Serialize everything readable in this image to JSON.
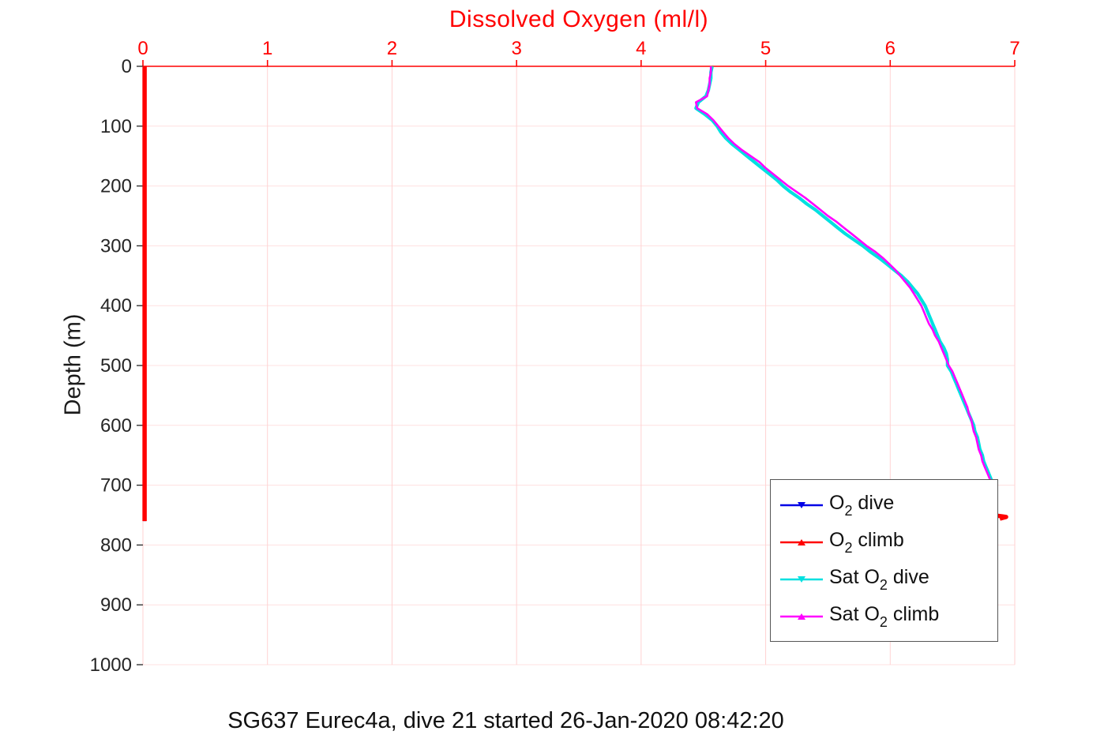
{
  "chart_data": {
    "type": "line",
    "title": "Dissolved Oxygen (ml/l)",
    "ylabel": "Depth (m)",
    "caption": "SG637 Eurec4a, dive 21 started 26-Jan-2020 08:42:20",
    "xlim": [
      0,
      7
    ],
    "ylim": [
      0,
      1000
    ],
    "y_inverted": true,
    "x_axis_location": "top",
    "grid": true,
    "x_ticks": [
      0,
      1,
      2,
      3,
      4,
      5,
      6,
      7
    ],
    "x_tick_labels": [
      "0",
      "1",
      "2",
      "3",
      "4",
      "5",
      "6",
      "7"
    ],
    "y_ticks": [
      0,
      100,
      200,
      300,
      400,
      500,
      600,
      700,
      800,
      900,
      1000
    ],
    "y_tick_labels": [
      "0",
      "100",
      "200",
      "300",
      "400",
      "500",
      "600",
      "700",
      "800",
      "900",
      "1000"
    ],
    "colors": {
      "x_axis": "#ff0000",
      "y_axis": "#262626",
      "grid_x": "#ffd2d2",
      "grid_y": "#ffe0e0",
      "background": "#ffffff",
      "legend_border": "#555555"
    },
    "series": [
      {
        "name": "O2 dive",
        "color": "#0000e6",
        "width": 4,
        "marker": "v",
        "x": [
          0.013,
          0.013
        ],
        "y": [
          0,
          760
        ]
      },
      {
        "name": "O2 climb",
        "color": "#ff0000",
        "width": 5.5,
        "marker": "^",
        "x": [
          0.013,
          0.013,
          null,
          6.86,
          6.93,
          6.88
        ],
        "y": [
          0,
          760,
          null,
          751,
          753,
          756
        ]
      },
      {
        "name": "Sat O2 dive",
        "color": "#00e0e0",
        "width": 4.2,
        "marker": "v",
        "x": [
          4.57,
          4.56,
          4.56,
          4.55,
          4.54,
          4.52,
          4.46,
          4.44,
          4.51,
          4.57,
          4.61,
          4.64,
          4.68,
          4.73,
          4.79,
          4.85,
          4.91,
          4.97,
          5.03,
          5.09,
          5.14,
          5.2,
          5.27,
          5.33,
          5.4,
          5.46,
          5.52,
          5.58,
          5.64,
          5.71,
          5.78,
          5.84,
          5.91,
          5.97,
          6.03,
          6.09,
          6.14,
          6.18,
          6.22,
          6.25,
          6.28,
          6.3,
          6.32,
          6.34,
          6.36,
          6.38,
          6.4,
          6.43,
          6.45,
          6.46,
          6.46,
          6.49,
          6.51,
          6.53,
          6.55,
          6.57,
          6.59,
          6.61,
          6.63,
          6.65,
          6.67,
          6.68,
          6.7,
          6.71,
          6.72,
          6.74,
          6.75,
          6.77,
          6.79,
          6.81,
          6.83
        ],
        "y": [
          0,
          10,
          20,
          30,
          40,
          50,
          60,
          70,
          80,
          90,
          100,
          110,
          120,
          130,
          140,
          150,
          160,
          170,
          180,
          190,
          200,
          210,
          220,
          230,
          240,
          250,
          260,
          270,
          280,
          290,
          300,
          310,
          320,
          330,
          340,
          350,
          360,
          370,
          380,
          390,
          400,
          410,
          420,
          430,
          440,
          450,
          460,
          470,
          480,
          490,
          500,
          510,
          520,
          530,
          540,
          550,
          560,
          570,
          580,
          590,
          600,
          610,
          620,
          630,
          640,
          650,
          660,
          670,
          680,
          690,
          700
        ]
      },
      {
        "name": "Sat O2 climb",
        "color": "#ff00ff",
        "width": 2.6,
        "marker": "^",
        "x": [
          4.56,
          4.56,
          4.55,
          4.55,
          4.54,
          4.53,
          4.44,
          4.45,
          4.53,
          4.58,
          4.62,
          4.66,
          4.7,
          4.75,
          4.81,
          4.88,
          4.95,
          5.0,
          5.06,
          5.12,
          5.18,
          5.25,
          5.32,
          5.38,
          5.44,
          5.5,
          5.57,
          5.63,
          5.69,
          5.75,
          5.81,
          5.88,
          5.94,
          5.99,
          6.04,
          6.08,
          6.12,
          6.16,
          6.19,
          6.22,
          6.25,
          6.27,
          6.29,
          6.31,
          6.34,
          6.36,
          6.39,
          6.41,
          6.43,
          6.45,
          6.47,
          6.5,
          6.52,
          6.54,
          6.56,
          6.58,
          6.6,
          6.62,
          6.63,
          6.65,
          6.66,
          6.67,
          6.69,
          6.7,
          6.71,
          6.73,
          6.74,
          6.76,
          6.78,
          6.8,
          6.82
        ],
        "y": [
          0,
          10,
          20,
          30,
          40,
          50,
          60,
          70,
          80,
          90,
          100,
          110,
          120,
          130,
          140,
          150,
          160,
          170,
          180,
          190,
          200,
          210,
          220,
          230,
          240,
          250,
          260,
          270,
          280,
          290,
          300,
          310,
          320,
          330,
          340,
          350,
          360,
          370,
          380,
          390,
          400,
          410,
          420,
          430,
          440,
          450,
          460,
          470,
          480,
          490,
          500,
          510,
          520,
          530,
          540,
          550,
          560,
          570,
          580,
          590,
          600,
          610,
          620,
          630,
          640,
          650,
          660,
          670,
          680,
          690,
          700
        ]
      }
    ],
    "legend": {
      "position": "bottom-right",
      "entries": [
        {
          "pre": "O",
          "sub": "2",
          "post": " dive",
          "color": "#0000e6",
          "marker": "v"
        },
        {
          "pre": "O",
          "sub": "2",
          "post": " climb",
          "color": "#ff0000",
          "marker": "^"
        },
        {
          "pre": "Sat O",
          "sub": "2",
          "post": " dive",
          "color": "#00e0e0",
          "marker": "v"
        },
        {
          "pre": "Sat O",
          "sub": "2",
          "post": " climb",
          "color": "#ff00ff",
          "marker": "^"
        }
      ]
    }
  }
}
